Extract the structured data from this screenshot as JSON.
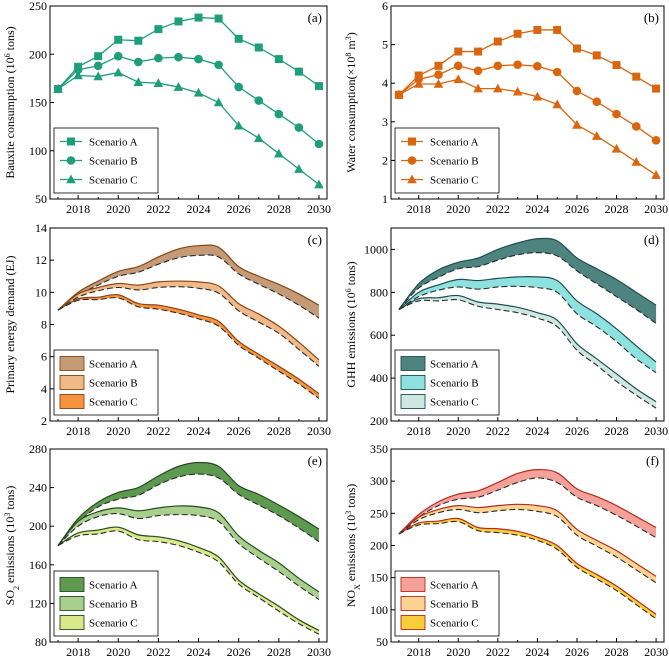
{
  "chart_data": [
    {
      "id": "a",
      "type": "line",
      "panel_label": "(a)",
      "ylabel": "Bauxite consumption (10^6 tons)",
      "ylabel_parts": [
        [
          "Bauxite consumption (10",
          ""
        ],
        [
          "6",
          "sup"
        ],
        [
          " tons)",
          ""
        ]
      ],
      "ylim": [
        50,
        250
      ],
      "yticks": [
        50,
        100,
        150,
        200,
        250
      ],
      "xlim": [
        2016.6,
        2030.4
      ],
      "xticks": [
        2018,
        2020,
        2022,
        2024,
        2026,
        2028,
        2030
      ],
      "color": "#1f9e7c",
      "legend_loc": "lower-left",
      "x": [
        2017,
        2018,
        2019,
        2020,
        2021,
        2022,
        2023,
        2024,
        2025,
        2026,
        2027,
        2028,
        2029,
        2030
      ],
      "series": [
        {
          "name": "Scenario A",
          "marker": "square",
          "values": [
            164,
            187,
            198,
            215,
            214,
            226,
            234,
            238,
            237,
            216,
            207,
            195,
            182,
            167
          ]
        },
        {
          "name": "Scenario B",
          "marker": "circle",
          "values": [
            164,
            184,
            188,
            198,
            192,
            196,
            197,
            195,
            189,
            166,
            152,
            138,
            124,
            107
          ]
        },
        {
          "name": "Scenario C",
          "marker": "triangle",
          "values": [
            164,
            178,
            177,
            181,
            171,
            170,
            166,
            160,
            150,
            126,
            113,
            97,
            81,
            65
          ]
        }
      ]
    },
    {
      "id": "b",
      "type": "line",
      "panel_label": "(b)",
      "ylabel": "Water consumption (×10^8 m^3)",
      "ylabel_parts": [
        [
          "Water consumption(×10",
          ""
        ],
        [
          "8",
          "sup"
        ],
        [
          " m",
          ""
        ],
        [
          "3",
          "sup"
        ],
        [
          ")",
          ""
        ]
      ],
      "ylim": [
        1,
        6
      ],
      "yticks": [
        1,
        2,
        3,
        4,
        5,
        6
      ],
      "xlim": [
        2016.6,
        2030.4
      ],
      "xticks": [
        2018,
        2020,
        2022,
        2024,
        2026,
        2028,
        2030
      ],
      "color": "#d9660f",
      "legend_loc": "lower-left",
      "x": [
        2017,
        2018,
        2019,
        2020,
        2021,
        2022,
        2023,
        2024,
        2025,
        2026,
        2027,
        2028,
        2029,
        2030
      ],
      "series": [
        {
          "name": "Scenario A",
          "marker": "square",
          "values": [
            3.7,
            4.2,
            4.45,
            4.82,
            4.82,
            5.08,
            5.28,
            5.38,
            5.38,
            4.9,
            4.72,
            4.47,
            4.17,
            3.86
          ]
        },
        {
          "name": "Scenario B",
          "marker": "circle",
          "values": [
            3.7,
            4.1,
            4.22,
            4.45,
            4.32,
            4.45,
            4.48,
            4.44,
            4.29,
            3.8,
            3.52,
            3.2,
            2.88,
            2.52
          ]
        },
        {
          "name": "Scenario C",
          "marker": "triangle",
          "values": [
            3.7,
            3.98,
            3.98,
            4.1,
            3.86,
            3.86,
            3.78,
            3.65,
            3.45,
            2.92,
            2.63,
            2.3,
            1.96,
            1.62
          ]
        }
      ]
    },
    {
      "id": "c",
      "type": "area",
      "panel_label": "(c)",
      "ylabel": "Primary energy demand (EJ)",
      "ylabel_parts": [
        [
          "Primary energy demand (EJ)",
          ""
        ]
      ],
      "ylim": [
        2,
        14
      ],
      "yticks": [
        2,
        4,
        6,
        8,
        10,
        12,
        14
      ],
      "xlim": [
        2016.6,
        2030.4
      ],
      "xticks": [
        2018,
        2020,
        2022,
        2024,
        2026,
        2028,
        2030
      ],
      "legend_loc": "lower-left",
      "line_color": "#8b4513",
      "x": [
        2017,
        2018,
        2019,
        2020,
        2021,
        2022,
        2023,
        2024,
        2025,
        2026,
        2027,
        2028,
        2029,
        2030
      ],
      "series": [
        {
          "name": "Scenario A",
          "fill": "#c49a77",
          "upper": [
            8.9,
            10.0,
            10.7,
            11.3,
            11.6,
            12.2,
            12.7,
            12.9,
            12.8,
            11.6,
            11.0,
            10.5,
            9.9,
            9.2
          ],
          "lower": [
            8.9,
            9.8,
            10.45,
            11.0,
            11.25,
            11.75,
            12.15,
            12.3,
            12.2,
            11.15,
            10.5,
            9.9,
            9.2,
            8.4
          ]
        },
        {
          "name": "Scenario B",
          "fill": "#efb98a",
          "upper": [
            8.9,
            9.9,
            10.3,
            10.55,
            10.45,
            10.65,
            10.7,
            10.65,
            10.4,
            9.3,
            8.65,
            7.9,
            6.9,
            5.8
          ],
          "lower": [
            8.9,
            9.7,
            10.1,
            10.3,
            10.15,
            10.3,
            10.35,
            10.25,
            9.95,
            8.85,
            8.15,
            7.45,
            6.45,
            5.4
          ]
        },
        {
          "name": "Scenario C",
          "fill": "#f6933e",
          "upper": [
            8.9,
            9.6,
            9.7,
            9.85,
            9.3,
            9.2,
            8.95,
            8.6,
            8.2,
            6.95,
            6.15,
            5.4,
            4.6,
            3.7
          ],
          "lower": [
            8.9,
            9.5,
            9.55,
            9.65,
            9.1,
            8.95,
            8.7,
            8.35,
            7.9,
            6.7,
            5.9,
            5.1,
            4.3,
            3.4
          ]
        }
      ]
    },
    {
      "id": "d",
      "type": "area",
      "panel_label": "(d)",
      "ylabel": "GHH emissions (10^6 tons)",
      "ylabel_parts": [
        [
          "GHH emissions (10",
          ""
        ],
        [
          "6",
          "sup"
        ],
        [
          " tons)",
          ""
        ]
      ],
      "ylim": [
        200,
        1100
      ],
      "yticks": [
        200,
        400,
        600,
        800,
        1000
      ],
      "xlim": [
        2016.6,
        2030.4
      ],
      "xticks": [
        2018,
        2020,
        2022,
        2024,
        2026,
        2028,
        2030
      ],
      "legend_loc": "lower-left",
      "line_color": "#1f4f50",
      "x": [
        2017,
        2018,
        2019,
        2020,
        2021,
        2022,
        2023,
        2024,
        2025,
        2026,
        2027,
        2028,
        2029,
        2030
      ],
      "series": [
        {
          "name": "Scenario A",
          "fill": "#4d8480",
          "upper": [
            720,
            840,
            905,
            940,
            960,
            1000,
            1030,
            1050,
            1040,
            960,
            910,
            860,
            800,
            740
          ],
          "lower": [
            720,
            820,
            870,
            910,
            920,
            950,
            975,
            985,
            970,
            900,
            840,
            780,
            720,
            655
          ]
        },
        {
          "name": "Scenario B",
          "fill": "#8de2e0",
          "upper": [
            720,
            800,
            835,
            860,
            855,
            865,
            872,
            872,
            855,
            760,
            700,
            630,
            550,
            475
          ],
          "lower": [
            720,
            780,
            810,
            825,
            815,
            825,
            828,
            822,
            800,
            700,
            640,
            570,
            490,
            425
          ]
        },
        {
          "name": "Scenario C",
          "fill": "#cde8e0",
          "upper": [
            720,
            770,
            775,
            785,
            755,
            745,
            730,
            705,
            670,
            560,
            490,
            420,
            350,
            290
          ],
          "lower": [
            720,
            760,
            760,
            765,
            735,
            720,
            705,
            680,
            640,
            530,
            460,
            385,
            320,
            260
          ]
        }
      ]
    },
    {
      "id": "e",
      "type": "area",
      "panel_label": "(e)",
      "ylabel": "SO2 emissions (10^3 tons)",
      "ylabel_parts": [
        [
          "SO",
          ""
        ],
        [
          "2",
          "sub"
        ],
        [
          " emissions (10",
          ""
        ],
        [
          "3",
          "sup"
        ],
        [
          " tons)",
          ""
        ]
      ],
      "ylim": [
        80,
        280
      ],
      "yticks": [
        80,
        120,
        160,
        200,
        240,
        280
      ],
      "xlim": [
        2016.6,
        2030.4
      ],
      "xticks": [
        2018,
        2020,
        2022,
        2024,
        2026,
        2028,
        2030
      ],
      "legend_loc": "lower-left",
      "line_color": "#234d1a",
      "x": [
        2017,
        2018,
        2019,
        2020,
        2021,
        2022,
        2023,
        2024,
        2025,
        2026,
        2027,
        2028,
        2029,
        2030
      ],
      "series": [
        {
          "name": "Scenario A",
          "fill": "#5e9950",
          "upper": [
            180,
            208,
            225,
            235,
            240,
            252,
            262,
            266,
            262,
            242,
            233,
            222,
            210,
            197
          ],
          "lower": [
            180,
            204,
            220,
            228,
            232,
            243,
            251,
            254,
            250,
            233,
            222,
            211,
            198,
            184
          ]
        },
        {
          "name": "Scenario B",
          "fill": "#a9cf8e",
          "upper": [
            180,
            205,
            215,
            219,
            216,
            219,
            221,
            220,
            214,
            190,
            175,
            162,
            146,
            132
          ],
          "lower": [
            180,
            200,
            210,
            213,
            208,
            211,
            212,
            211,
            205,
            182,
            167,
            153,
            138,
            124
          ]
        },
        {
          "name": "Scenario C",
          "fill": "#d8e88a",
          "upper": [
            180,
            193,
            196,
            199,
            191,
            189,
            185,
            178,
            168,
            144,
            130,
            117,
            103,
            92
          ],
          "lower": [
            180,
            190,
            192,
            195,
            186,
            184,
            180,
            173,
            163,
            140,
            126,
            112,
            99,
            88
          ]
        }
      ]
    },
    {
      "id": "f",
      "type": "area",
      "panel_label": "(f)",
      "ylabel": "NOX emissions (10^3 tons)",
      "ylabel_parts": [
        [
          "NO",
          ""
        ],
        [
          "X",
          "sub"
        ],
        [
          " emissions (10",
          ""
        ],
        [
          "3",
          "sup"
        ],
        [
          " tons)",
          ""
        ]
      ],
      "ylim": [
        50,
        350
      ],
      "yticks": [
        50,
        100,
        150,
        200,
        250,
        300,
        350
      ],
      "xlim": [
        2016.6,
        2030.4
      ],
      "xticks": [
        2018,
        2020,
        2022,
        2024,
        2026,
        2028,
        2030
      ],
      "legend_loc": "lower-left",
      "line_color": "#b52a1e",
      "x": [
        2017,
        2018,
        2019,
        2020,
        2021,
        2022,
        2023,
        2024,
        2025,
        2026,
        2027,
        2028,
        2029,
        2030
      ],
      "series": [
        {
          "name": "Scenario A",
          "fill": "#f4a19a",
          "upper": [
            218,
            248,
            268,
            280,
            285,
            298,
            312,
            318,
            313,
            288,
            276,
            262,
            245,
            228
          ],
          "lower": [
            218,
            244,
            262,
            272,
            275,
            286,
            298,
            305,
            298,
            275,
            262,
            247,
            230,
            212
          ]
        },
        {
          "name": "Scenario B",
          "fill": "#fbd393",
          "upper": [
            218,
            244,
            256,
            262,
            259,
            262,
            264,
            262,
            254,
            225,
            208,
            192,
            172,
            152
          ],
          "lower": [
            218,
            240,
            251,
            256,
            251,
            254,
            256,
            253,
            245,
            216,
            199,
            182,
            162,
            142
          ]
        },
        {
          "name": "Scenario C",
          "fill": "#f9cd3a",
          "upper": [
            218,
            235,
            238,
            242,
            228,
            226,
            222,
            213,
            200,
            172,
            155,
            137,
            115,
            93
          ],
          "lower": [
            218,
            232,
            234,
            237,
            223,
            220,
            216,
            208,
            194,
            166,
            148,
            130,
            108,
            86
          ]
        }
      ]
    }
  ]
}
